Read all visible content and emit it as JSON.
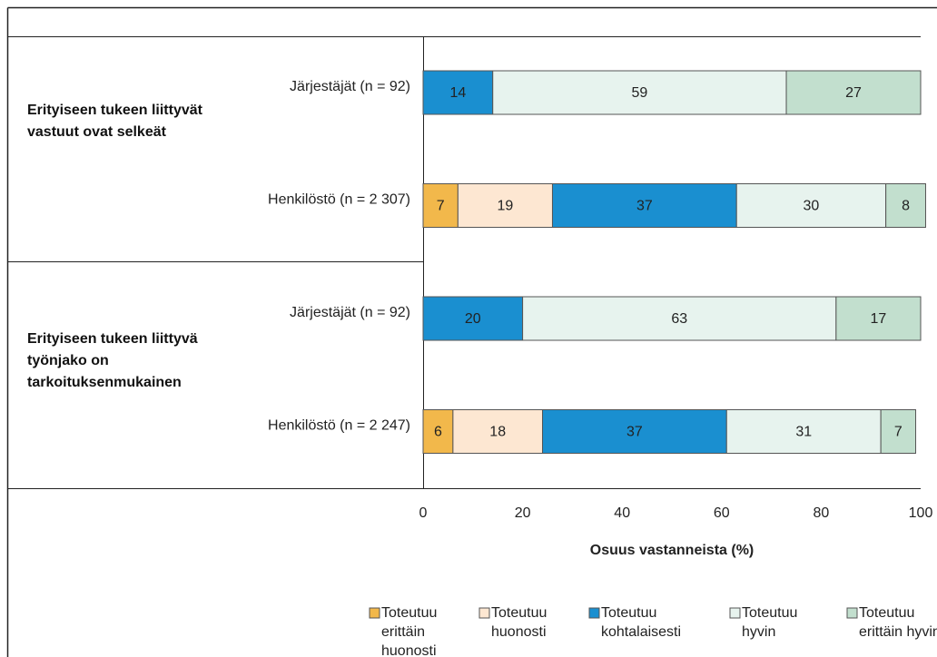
{
  "chart_data": {
    "type": "stacked-bar-horizontal",
    "groups": [
      {
        "label": "Erityiseen tukeen liittyvät vastuut ovat selkeät"
      },
      {
        "label": "Erityiseen tukeen liittyvä työnjako on tarkoituksenmukainen"
      }
    ],
    "categories": [
      "Järjestäjät (n = 92)",
      "Henkilöstö (n = 2 307)",
      "Järjestäjät (n = 92)",
      "Henkilöstö (n = 2 247)"
    ],
    "series": [
      {
        "name": "Toteutuu erittäin huonosti",
        "color": "#f2b84b",
        "values": [
          null,
          7,
          null,
          6
        ]
      },
      {
        "name": "Toteutuu huonosti",
        "color": "#fde7d2",
        "values": [
          null,
          19,
          null,
          18
        ]
      },
      {
        "name": "Toteutuu kohtalaisesti",
        "color": "#1a8fd0",
        "values": [
          14,
          37,
          20,
          37
        ]
      },
      {
        "name": "Toteutuu hyvin",
        "color": "#e7f3ee",
        "values": [
          59,
          30,
          63,
          31
        ]
      },
      {
        "name": "Toteutuu erittäin hyvin",
        "color": "#c2dfce",
        "values": [
          27,
          8,
          17,
          7
        ]
      }
    ],
    "x_label": "Osuus vastanneista (%)",
    "xlim": [
      0,
      100
    ],
    "xticks": [
      0,
      20,
      40,
      60,
      80,
      100
    ],
    "legend": "bottom-right"
  }
}
